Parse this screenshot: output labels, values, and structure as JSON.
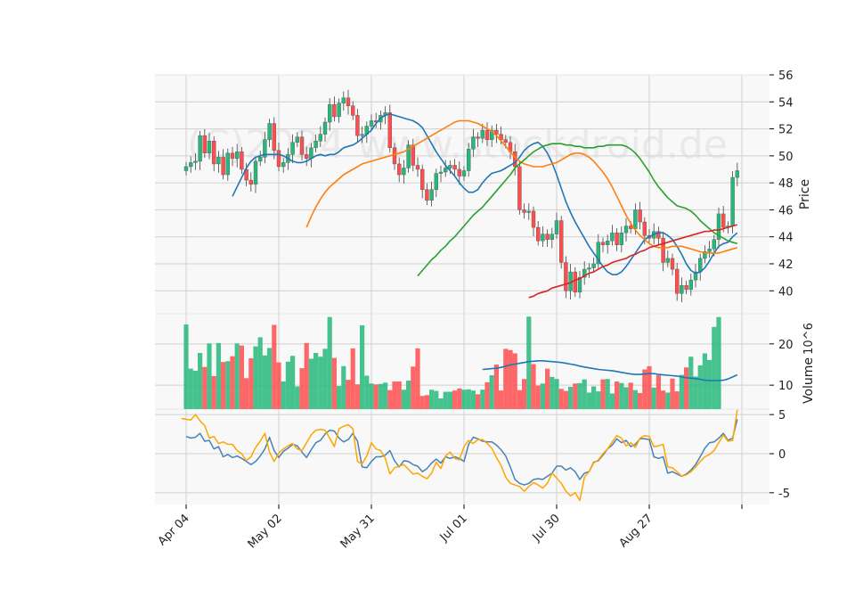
{
  "watermark": "(C)2024 www.stockdroid.de",
  "colors": {
    "up": "#26b87a",
    "down": "#ff4d4d",
    "panel_bg": "#f8f8f8",
    "grid": "#d0d0d0",
    "sma_short": "#1f77b4",
    "sma_mid": "#ff7f0e",
    "sma_long": "#2ca02c",
    "sma_200": "#d62728",
    "vol_avg": "#1f77b4",
    "osc_a": "#4682b4",
    "osc_b": "#ffa500"
  },
  "chart_data": [
    {
      "type": "candlestick",
      "panel": "price",
      "ylabel": "Price",
      "ylim": [
        38.3,
        56.0
      ],
      "yticks": [
        40,
        42,
        44,
        46,
        48,
        50,
        52,
        54,
        56
      ],
      "x_tick_labels": [
        {
          "label": "Apr 04",
          "index": 0
        },
        {
          "label": "May 02",
          "index": 20
        },
        {
          "label": "May 31",
          "index": 40
        },
        {
          "label": "Jul 01",
          "index": 60
        },
        {
          "label": "Jul 30",
          "index": 80
        },
        {
          "label": "Aug 27",
          "index": 100
        },
        {
          "label": "",
          "index": 120
        }
      ],
      "close": [
        49.2,
        49.5,
        49.6,
        51.5,
        50.2,
        51.1,
        49.4,
        49.9,
        48.6,
        50.2,
        49.8,
        50.3,
        49.0,
        48.2,
        47.9,
        49.6,
        49.9,
        51.2,
        52.4,
        50.4,
        49.2,
        49.5,
        50.1,
        51.0,
        51.4,
        50.1,
        49.8,
        50.6,
        51.1,
        51.6,
        52.5,
        53.8,
        52.9,
        53.9,
        54.3,
        53.7,
        53.0,
        51.5,
        51.6,
        52.2,
        52.6,
        52.5,
        53.0,
        53.2,
        50.6,
        49.4,
        48.6,
        49.1,
        50.8,
        49.3,
        49.0,
        47.5,
        46.7,
        47.5,
        48.7,
        48.8,
        49.1,
        49.3,
        49.0,
        48.5,
        48.9,
        50.5,
        51.4,
        51.3,
        51.9,
        51.2,
        51.9,
        51.6,
        51.2,
        51.0,
        50.3,
        49.2,
        46.0,
        45.8,
        45.9,
        44.7,
        43.7,
        44.2,
        43.8,
        44.2,
        45.2,
        42.1,
        40.0,
        41.4,
        39.9,
        41.0,
        41.6,
        41.7,
        42.0,
        43.6,
        43.4,
        43.7,
        44.3,
        43.4,
        44.3,
        44.8,
        44.6,
        46.0,
        45.1,
        44.1,
        43.9,
        44.4,
        43.9,
        42.1,
        42.4,
        41.6,
        39.8,
        40.4,
        40.1,
        40.8,
        41.4,
        42.4,
        42.9,
        43.1,
        43.8,
        45.7,
        44.7,
        44.8,
        48.4,
        48.9
      ],
      "series": [
        {
          "name": "SMA short",
          "color_key": "sma_short",
          "values": [
            47.0,
            47.7,
            48.4,
            49.1,
            49.6,
            49.9,
            50.0,
            50.1,
            50.1,
            50.1,
            50.1,
            50.0,
            49.8,
            49.6,
            49.5,
            49.5,
            49.6,
            49.8,
            50.0,
            50.1,
            50.0,
            50.1,
            50.1,
            50.3,
            50.6,
            50.7,
            50.8,
            51.0,
            51.3,
            51.6,
            51.9,
            52.4,
            52.8,
            53.0,
            53.1,
            53.0,
            52.9,
            52.8,
            52.7,
            52.6,
            52.4,
            52.1,
            51.5,
            50.9,
            50.3,
            49.8,
            49.3,
            48.9,
            48.5,
            48.0,
            47.6,
            47.3,
            47.3,
            47.5,
            48.0,
            48.4,
            48.7,
            48.8,
            48.9,
            49.1,
            49.3,
            49.5,
            49.9,
            50.4,
            50.7,
            50.9,
            51.0,
            50.7,
            50.2,
            49.5,
            48.6,
            47.6,
            46.6,
            45.8,
            45.1,
            44.5,
            43.9,
            43.3,
            42.8,
            42.3,
            41.8,
            41.4,
            41.2,
            41.2,
            41.4,
            41.8,
            42.3,
            42.8,
            43.3,
            43.8,
            44.0,
            44.2,
            44.3,
            44.3,
            44.1,
            43.8,
            43.3,
            42.7,
            42.0,
            41.5,
            41.3,
            41.4,
            41.7,
            42.2,
            42.8,
            43.3,
            43.5,
            43.6,
            44.0,
            44.3
          ]
        },
        {
          "name": "SMA mid",
          "color_key": "sma_mid",
          "values": [
            44.7,
            45.5,
            46.2,
            46.8,
            47.3,
            47.7,
            48.0,
            48.3,
            48.6,
            48.8,
            49.0,
            49.2,
            49.4,
            49.5,
            49.6,
            49.7,
            49.8,
            49.9,
            50.0,
            50.1,
            50.2,
            50.3,
            50.5,
            50.7,
            50.9,
            51.1,
            51.3,
            51.5,
            51.7,
            51.9,
            52.1,
            52.3,
            52.5,
            52.6,
            52.6,
            52.6,
            52.5,
            52.4,
            52.2,
            52.0,
            51.8,
            51.5,
            51.1,
            50.7,
            50.3,
            49.9,
            49.6,
            49.4,
            49.3,
            49.2,
            49.2,
            49.2,
            49.3,
            49.4,
            49.5,
            49.7,
            49.9,
            50.1,
            50.2,
            50.2,
            50.1,
            49.9,
            49.6,
            49.2,
            48.8,
            48.3,
            47.7,
            47.0,
            46.3,
            45.6,
            45.0,
            44.5,
            44.1,
            43.8,
            43.5,
            43.3,
            43.2,
            43.2,
            43.2,
            43.3,
            43.3,
            43.3,
            43.2,
            43.1,
            43.0,
            42.9,
            42.8,
            42.8,
            42.8,
            42.8,
            42.9,
            43.0,
            43.1,
            43.2
          ]
        },
        {
          "name": "SMA long",
          "color_key": "sma_long",
          "values": [
            41.1,
            41.5,
            41.9,
            42.3,
            42.6,
            43.0,
            43.3,
            43.7,
            44.0,
            44.4,
            44.8,
            45.2,
            45.6,
            45.9,
            46.2,
            46.6,
            47.0,
            47.4,
            47.8,
            48.2,
            48.6,
            49.1,
            49.4,
            49.7,
            50.0,
            50.3,
            50.5,
            50.7,
            50.8,
            50.9,
            50.9,
            50.9,
            50.8,
            50.8,
            50.7,
            50.7,
            50.6,
            50.6,
            50.6,
            50.7,
            50.7,
            50.8,
            50.8,
            50.8,
            50.8,
            50.7,
            50.5,
            50.2,
            49.8,
            49.3,
            48.8,
            48.2,
            47.7,
            47.3,
            46.9,
            46.6,
            46.3,
            46.2,
            46.1,
            45.9,
            45.6,
            45.2,
            44.9,
            44.6,
            44.3,
            44.1,
            43.9,
            43.7,
            43.6,
            43.5
          ]
        },
        {
          "name": "SMA 200",
          "color_key": "sma_200",
          "values": [
            39.5,
            39.6,
            39.8,
            39.9,
            40.0,
            40.2,
            40.3,
            40.4,
            40.5,
            40.6,
            40.8,
            40.9,
            41.1,
            41.3,
            41.4,
            41.6,
            41.8,
            41.9,
            42.1,
            42.2,
            42.3,
            42.4,
            42.6,
            42.7,
            42.9,
            43.0,
            43.2,
            43.3,
            43.4,
            43.5,
            43.6,
            43.7,
            43.8,
            43.9,
            44.0,
            44.1,
            44.2,
            44.3,
            44.4,
            44.4,
            44.5,
            44.5,
            44.6,
            44.7,
            44.8,
            44.9
          ]
        }
      ]
    },
    {
      "type": "bar",
      "panel": "volume",
      "ylabel": "Volume",
      "y_scale_exponent": "10^6",
      "ylim": [
        4.2,
        27.3
      ],
      "yticks": [
        10,
        20
      ],
      "values": [
        24.7,
        14.0,
        13.5,
        17.8,
        14.4,
        20.1,
        12.2,
        20.2,
        15.6,
        15.8,
        17.0,
        20.1,
        19.6,
        11.7,
        16.5,
        19.4,
        21.6,
        17.2,
        19.0,
        24.6,
        15.5,
        10.9,
        15.7,
        17.1,
        9.7,
        14.1,
        20.2,
        16.4,
        17.8,
        16.9,
        18.8,
        26.5,
        16.6,
        9.8,
        14.6,
        11.3,
        18.9,
        10.2,
        24.5,
        12.3,
        10.4,
        10.2,
        10.3,
        10.6,
        8.8,
        10.9,
        10.9,
        8.9,
        11.1,
        14.5,
        18.9,
        7.4,
        7.6,
        8.9,
        8.6,
        6.8,
        8.4,
        8.4,
        8.7,
        9.2,
        8.9,
        9.0,
        8.7,
        7.8,
        8.9,
        10.7,
        12.4,
        15.0,
        8.7,
        18.8,
        18.5,
        17.7,
        8.8,
        11.5,
        26.6,
        15.1,
        9.9,
        10.4,
        14.0,
        12.0,
        11.5,
        9.1,
        8.6,
        9.6,
        10.4,
        10.5,
        11.4,
        8.2,
        9.7,
        8.5,
        11.4,
        11.5,
        8.0,
        10.9,
        10.5,
        9.5,
        10.6,
        8.8,
        8.1,
        13.8,
        14.6,
        9.4,
        12.4,
        8.7,
        8.2,
        11.6,
        8.5,
        12.5,
        14.3,
        16.9,
        12.1,
        14.8,
        17.7,
        16.1,
        24.1,
        26.5
      ],
      "series": [
        {
          "name": "Volume average",
          "color_key": "vol_avg",
          "values": [
            13.8,
            13.9,
            14.0,
            14.1,
            14.3,
            14.6,
            14.9,
            15.1,
            15.3,
            15.5,
            15.7,
            15.8,
            15.9,
            15.9,
            15.8,
            15.7,
            15.6,
            15.5,
            15.3,
            15.1,
            14.9,
            14.6,
            14.4,
            14.2,
            14.0,
            13.8,
            13.7,
            13.6,
            13.5,
            13.3,
            13.1,
            12.9,
            12.7,
            12.6,
            12.6,
            12.7,
            12.8,
            12.8,
            12.6,
            12.5,
            12.4,
            12.3,
            12.2,
            12.0,
            11.8,
            11.7,
            11.6,
            11.4,
            11.2,
            11.1,
            11.1,
            11.1,
            11.2,
            11.5,
            12.0,
            12.5
          ]
        }
      ]
    },
    {
      "type": "line",
      "panel": "oscillator",
      "ylim": [
        -6.5,
        5.7
      ],
      "yticks": [
        -5,
        0,
        5
      ],
      "series": [
        {
          "name": "Oscillator line A",
          "color_key": "osc_a",
          "values": [
            2.2,
            2.0,
            2.1,
            2.6,
            1.6,
            1.7,
            0.6,
            0.9,
            -0.4,
            -0.1,
            -0.5,
            -0.3,
            -0.6,
            -1.0,
            -1.4,
            -1.0,
            -0.3,
            0.6,
            2.1,
            0.4,
            -0.5,
            0.3,
            0.7,
            1.2,
            1.0,
            0.2,
            -0.5,
            0.5,
            1.4,
            1.7,
            2.5,
            3.0,
            2.9,
            2.0,
            1.5,
            1.8,
            2.6,
            1.6,
            -1.7,
            -1.8,
            -1.0,
            -0.4,
            -0.4,
            -0.2,
            0.4,
            -0.9,
            -1.7,
            -0.9,
            -1.0,
            -1.4,
            -1.6,
            -2.3,
            -1.9,
            -1.2,
            -0.7,
            -1.2,
            -0.4,
            -0.6,
            -0.4,
            -0.6,
            -1.0,
            1.2,
            2.1,
            1.9,
            1.6,
            1.5,
            1.5,
            1.1,
            0.5,
            -0.3,
            -1.7,
            -3.3,
            -3.8,
            -4.0,
            -3.8,
            -3.3,
            -3.2,
            -3.3,
            -2.9,
            -2.5,
            -1.6,
            -1.6,
            -2.1,
            -1.8,
            -2.3,
            -3.3,
            -2.5,
            -2.3,
            -1.1,
            -0.9,
            -0.2,
            0.6,
            1.1,
            1.9,
            1.4,
            1.7,
            0.9,
            1.2,
            1.9,
            1.9,
            1.8,
            -0.4,
            -0.6,
            -0.4,
            -2.5,
            -2.3,
            -2.6,
            -2.9,
            -2.6,
            -2.1,
            -1.4,
            -0.4,
            0.7,
            1.4,
            1.5,
            2.0,
            2.6,
            1.7,
            2.0,
            4.4
          ]
        },
        {
          "name": "Oscillator line B",
          "color_key": "osc_b",
          "values": [
            4.5,
            4.4,
            4.3,
            5.0,
            4.2,
            3.6,
            2.0,
            2.2,
            1.3,
            1.5,
            1.2,
            1.2,
            0.4,
            0.0,
            -0.9,
            -0.4,
            0.8,
            1.6,
            2.6,
            0.2,
            -1.0,
            0.1,
            0.6,
            1.0,
            1.3,
            0.6,
            0.4,
            1.4,
            2.4,
            3.0,
            3.1,
            3.0,
            2.0,
            0.9,
            3.2,
            3.5,
            3.7,
            3.2,
            -1.0,
            -1.3,
            -0.3,
            1.4,
            0.6,
            0.4,
            -0.6,
            -2.6,
            -1.8,
            -1.6,
            -1.4,
            -2.0,
            -2.6,
            -2.5,
            -2.9,
            -3.2,
            -2.5,
            -1.1,
            -1.9,
            -0.3,
            0.2,
            -0.6,
            -0.8,
            0.9,
            1.7,
            1.3,
            1.8,
            1.8,
            1.3,
            0.7,
            -0.5,
            -1.5,
            -3.0,
            -3.8,
            -4.0,
            -4.2,
            -4.8,
            -4.2,
            -3.7,
            -4.0,
            -4.4,
            -3.8,
            -2.5,
            -3.1,
            -3.8,
            -4.8,
            -5.4,
            -5.0,
            -6.0,
            -3.0,
            -2.3,
            -1.2,
            -0.8,
            0.0,
            0.6,
            1.5,
            2.3,
            2.0,
            1.0,
            1.4,
            0.8,
            2.0,
            2.3,
            2.2,
            0.9,
            1.0,
            1.2,
            -1.7,
            -1.8,
            -2.3,
            -2.9,
            -2.7,
            -2.3,
            -1.7,
            -1.0,
            -0.4,
            -0.1,
            0.4,
            1.4,
            2.4,
            1.6,
            1.7,
            5.6
          ]
        }
      ]
    }
  ]
}
